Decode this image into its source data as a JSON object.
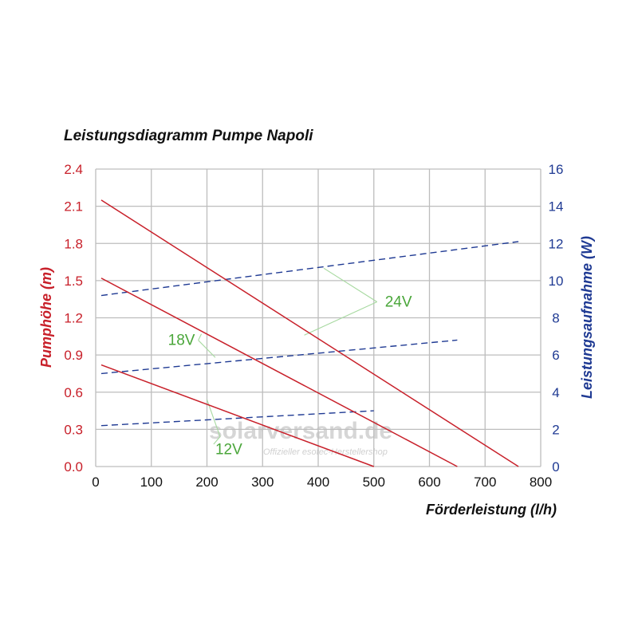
{
  "chart_data": {
    "type": "line",
    "title": "Leistungsdiagramm Pumpe Napoli",
    "xlabel": "Förderleistung (l/h)",
    "ylabel_left": "Pumphöhe (m)",
    "ylabel_right": "Leistungsaufnahme (W)",
    "xlim": [
      0,
      800
    ],
    "ylim_left": [
      0,
      2.4
    ],
    "ylim_right": [
      0,
      16
    ],
    "x_ticks": [
      "0",
      "100",
      "200",
      "300",
      "400",
      "500",
      "600",
      "700",
      "800"
    ],
    "y_left_ticks": [
      "0.0",
      "0.3",
      "0.6",
      "0.9",
      "1.2",
      "1.5",
      "1.8",
      "2.1",
      "2.4"
    ],
    "y_right_ticks": [
      "0",
      "2",
      "4",
      "6",
      "8",
      "10",
      "12",
      "14",
      "16"
    ],
    "grid": true,
    "colors": {
      "head": "#c8202a",
      "power": "#1f3a93",
      "annotation": "#4aa63a",
      "grid": "#bdbdbd"
    },
    "head_series": [
      {
        "voltage": "24V",
        "axis": "left",
        "points": [
          [
            10,
            2.15
          ],
          [
            760,
            0.0
          ]
        ]
      },
      {
        "voltage": "18V",
        "axis": "left",
        "points": [
          [
            10,
            1.52
          ],
          [
            650,
            0.0
          ]
        ]
      },
      {
        "voltage": "12V",
        "axis": "left",
        "points": [
          [
            10,
            0.82
          ],
          [
            500,
            0.0
          ]
        ]
      }
    ],
    "power_series": [
      {
        "voltage": "24V",
        "axis": "right",
        "points": [
          [
            10,
            9.2
          ],
          [
            760,
            12.1
          ]
        ]
      },
      {
        "voltage": "18V",
        "axis": "right",
        "points": [
          [
            10,
            5.0
          ],
          [
            650,
            6.8
          ]
        ]
      },
      {
        "voltage": "12V",
        "axis": "right",
        "points": [
          [
            10,
            2.2
          ],
          [
            500,
            3.0
          ]
        ]
      }
    ],
    "annotations": [
      {
        "text": "24V",
        "label_at": [
          520,
          1.29
        ],
        "targets": [
          [
            410,
            1.6
          ],
          [
            375,
            1.06
          ]
        ]
      },
      {
        "text": "18V",
        "label_at": [
          130,
          0.98
        ],
        "targets": [
          [
            190,
            1.07
          ],
          [
            215,
            0.88
          ]
        ]
      },
      {
        "text": "12V",
        "label_at": [
          215,
          0.1
        ],
        "targets": [
          [
            200,
            0.54
          ],
          [
            212,
            0.18
          ]
        ]
      }
    ]
  },
  "watermark": {
    "brand": "solarversand.de",
    "tagline": "Offizieller esotec-Herstellershop"
  }
}
